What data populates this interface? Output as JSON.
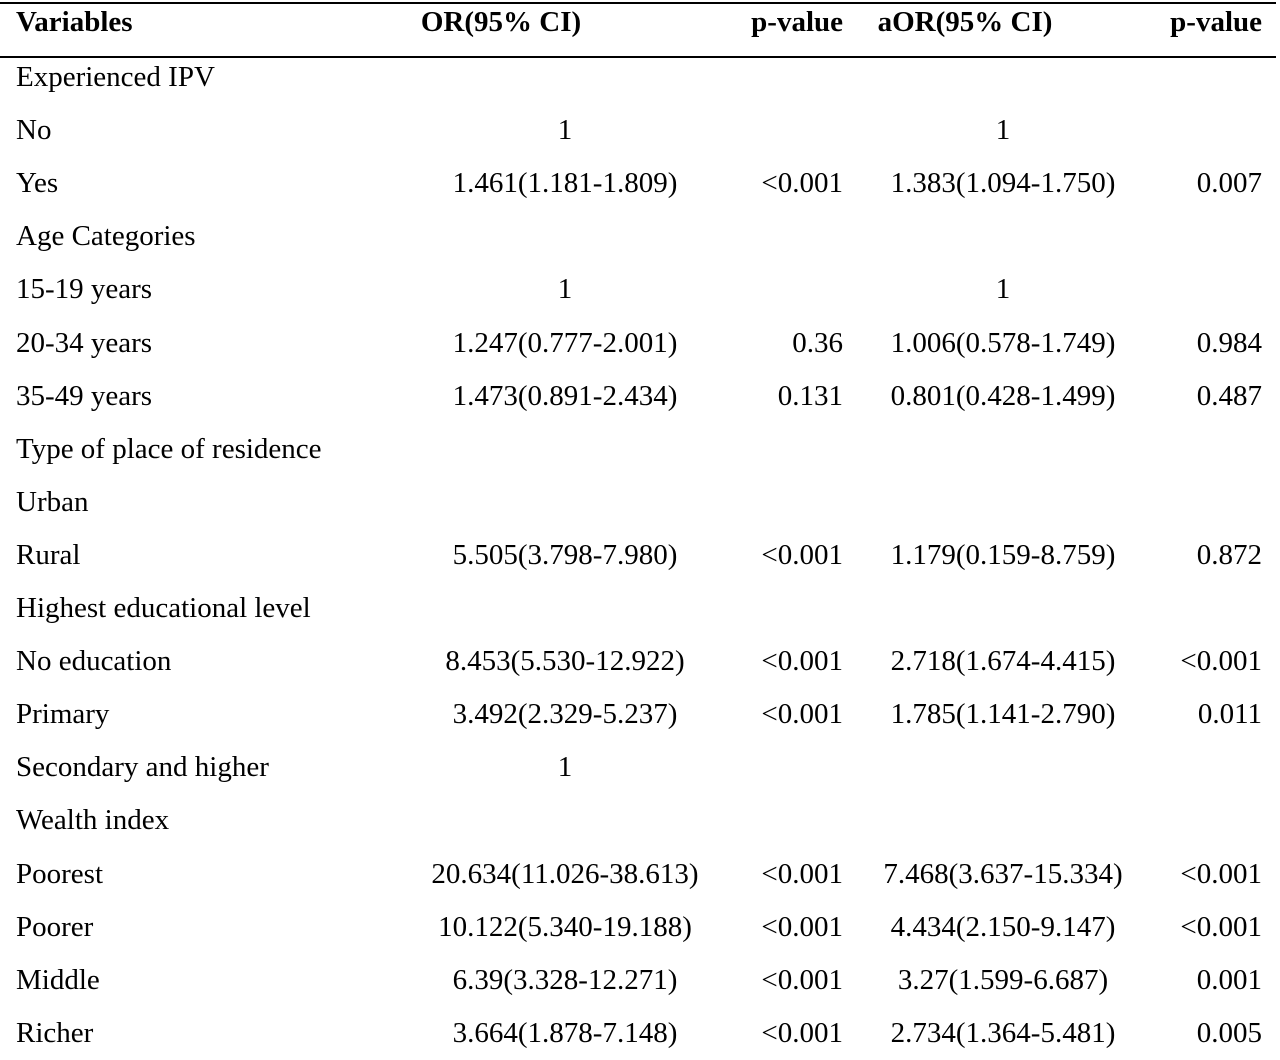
{
  "table": {
    "headers": {
      "variables": "Variables",
      "or": "OR(95% CI)",
      "p1": "p-value",
      "aor": "aOR(95% CI)",
      "p2": "p-value"
    },
    "rows": [
      {
        "var": "Experienced IPV",
        "or": "",
        "p1": "",
        "aor": "",
        "p2": ""
      },
      {
        "var": "No",
        "or": "1",
        "p1": "",
        "aor": "1",
        "p2": ""
      },
      {
        "var": "Yes",
        "or": "1.461(1.181-1.809)",
        "p1": "<0.001",
        "aor": "1.383(1.094-1.750)",
        "p2": "0.007"
      },
      {
        "var": "Age Categories",
        "or": "",
        "p1": "",
        "aor": "",
        "p2": ""
      },
      {
        "var": "15-19 years",
        "or": "1",
        "p1": "",
        "aor": "1",
        "p2": ""
      },
      {
        "var": "20-34 years",
        "or": "1.247(0.777-2.001)",
        "p1": "0.36",
        "aor": "1.006(0.578-1.749)",
        "p2": "0.984"
      },
      {
        "var": "35-49 years",
        "or": "1.473(0.891-2.434)",
        "p1": "0.131",
        "aor": "0.801(0.428-1.499)",
        "p2": "0.487"
      },
      {
        "var": "Type of place of residence",
        "or": "",
        "p1": "",
        "aor": "",
        "p2": ""
      },
      {
        "var": "Urban",
        "or": "",
        "p1": "",
        "aor": "",
        "p2": ""
      },
      {
        "var": "Rural",
        "or": "5.505(3.798-7.980)",
        "p1": "<0.001",
        "aor": "1.179(0.159-8.759)",
        "p2": "0.872"
      },
      {
        "var": "Highest educational level",
        "or": "",
        "p1": "",
        "aor": "",
        "p2": ""
      },
      {
        "var": "No education",
        "or": "8.453(5.530-12.922)",
        "p1": "<0.001",
        "aor": "2.718(1.674-4.415)",
        "p2": "<0.001"
      },
      {
        "var": "Primary",
        "or": "3.492(2.329-5.237)",
        "p1": "<0.001",
        "aor": "1.785(1.141-2.790)",
        "p2": "0.011"
      },
      {
        "var": "Secondary and higher",
        "or": "1",
        "p1": "",
        "aor": "",
        "p2": ""
      },
      {
        "var": "Wealth index",
        "or": "",
        "p1": "",
        "aor": "",
        "p2": ""
      },
      {
        "var": "Poorest",
        "or": "20.634(11.026-38.613)",
        "p1": "<0.001",
        "aor": "7.468(3.637-15.334)",
        "p2": "<0.001"
      },
      {
        "var": "Poorer",
        "or": "10.122(5.340-19.188)",
        "p1": "<0.001",
        "aor": "4.434(2.150-9.147)",
        "p2": "<0.001"
      },
      {
        "var": "Middle",
        "or": "6.39(3.328-12.271)",
        "p1": "<0.001",
        "aor": "3.27(1.599-6.687)",
        "p2": "0.001"
      },
      {
        "var": "Richer",
        "or": "3.664(1.878-7.148)",
        "p1": "<0.001",
        "aor": "2.734(1.364-5.481)",
        "p2": "0.005"
      }
    ]
  }
}
